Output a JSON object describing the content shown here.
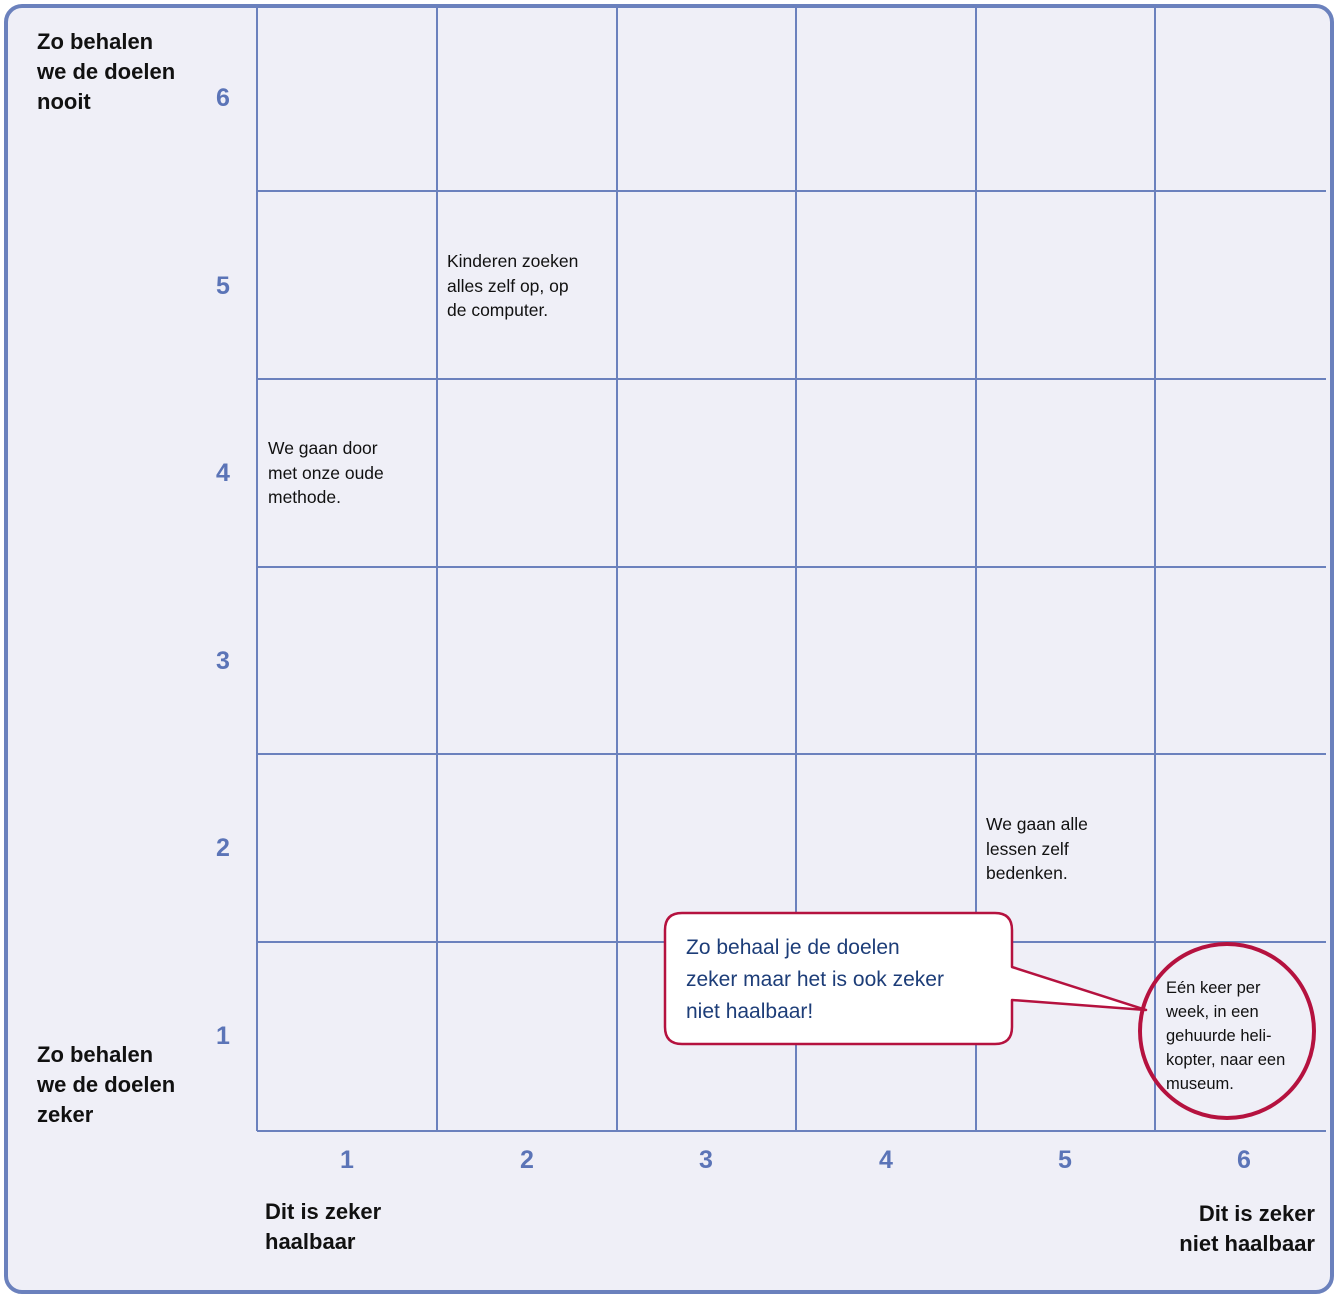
{
  "y_axis": {
    "top_label": "Zo behalen\nwe de doelen\nnooit",
    "bottom_label": "Zo behalen\nwe de doelen\nzeker",
    "numbers": [
      "6",
      "5",
      "4",
      "3",
      "2",
      "1"
    ]
  },
  "x_axis": {
    "numbers": [
      "1",
      "2",
      "3",
      "4",
      "5",
      "6"
    ],
    "left_label": "Dit is zeker\nhaalbaar",
    "right_label": "Dit is zeker\nniet haalbaar"
  },
  "cells": {
    "c2_r5": "Kinderen zoeken\nalles zelf op, op\nde computer.",
    "c1_r4": "We gaan door\nmet onze oude\nmethode.",
    "c5_r2": "We gaan alle\nlessen zelf\nbedenken.",
    "c6_r1": "Eén keer per\nweek, in een\ngehuurde heli-\nkopter, naar een\nmuseum."
  },
  "callout": {
    "text": "Zo behaal je de doelen\nzeker maar het is ook zeker\nniet haalbaar!"
  },
  "colors": {
    "grid": "#6b81bd",
    "background": "#efeff7",
    "axis_numbers": "#5b74b7",
    "highlight": "#b5123f",
    "callout_text": "#1d3d78"
  }
}
